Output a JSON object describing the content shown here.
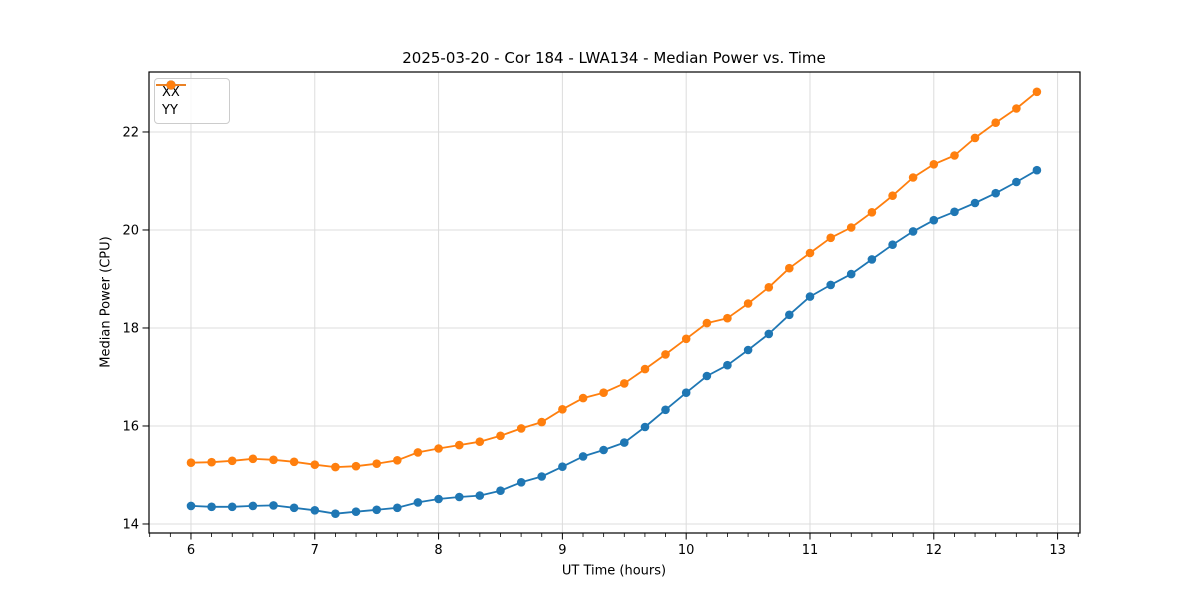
{
  "chart_data": {
    "type": "line",
    "title": "2025-03-20 - Cor 184 - LWA134 - Median Power vs. Time",
    "xlabel": "UT Time (hours)",
    "ylabel": "Median Power (CPU)",
    "xlim": [
      5.661,
      13.181
    ],
    "ylim": [
      13.816,
      23.224
    ],
    "x_ticks": [
      6,
      7,
      8,
      9,
      10,
      11,
      12,
      13
    ],
    "y_ticks": [
      14,
      16,
      18,
      20,
      22
    ],
    "x_minor_step": 0.1666667,
    "grid": true,
    "grid_color": "#dcdcdc",
    "legend_position": "upper left",
    "x": [
      6.0,
      6.167,
      6.333,
      6.5,
      6.667,
      6.833,
      7.0,
      7.167,
      7.333,
      7.5,
      7.667,
      7.833,
      8.0,
      8.167,
      8.333,
      8.5,
      8.667,
      8.833,
      9.0,
      9.167,
      9.333,
      9.5,
      9.667,
      9.833,
      10.0,
      10.167,
      10.333,
      10.5,
      10.667,
      10.833,
      11.0,
      11.167,
      11.333,
      11.5,
      11.667,
      11.833,
      12.0,
      12.167,
      12.333,
      12.5,
      12.667,
      12.833
    ],
    "series": [
      {
        "name": "XX",
        "color": "#1f77b4",
        "values": [
          14.37,
          14.35,
          14.35,
          14.37,
          14.38,
          14.33,
          14.28,
          14.21,
          14.25,
          14.29,
          14.33,
          14.44,
          14.51,
          14.55,
          14.58,
          14.68,
          14.85,
          14.97,
          15.17,
          15.38,
          15.51,
          15.66,
          15.98,
          16.33,
          16.68,
          17.02,
          17.24,
          17.55,
          17.88,
          18.27,
          18.64,
          18.88,
          19.1,
          19.4,
          19.7,
          19.97,
          20.2,
          20.37,
          20.55,
          20.75,
          20.98,
          21.22
        ]
      },
      {
        "name": "YY",
        "color": "#ff7f0e",
        "values": [
          15.25,
          15.26,
          15.29,
          15.33,
          15.31,
          15.27,
          15.21,
          15.16,
          15.18,
          15.23,
          15.3,
          15.46,
          15.54,
          15.61,
          15.68,
          15.8,
          15.95,
          16.08,
          16.34,
          16.57,
          16.68,
          16.87,
          17.16,
          17.46,
          17.78,
          18.1,
          18.2,
          18.5,
          18.83,
          19.22,
          19.53,
          19.84,
          20.05,
          20.36,
          20.7,
          21.07,
          21.34,
          21.52,
          21.88,
          22.19,
          22.48,
          22.82
        ]
      }
    ]
  }
}
